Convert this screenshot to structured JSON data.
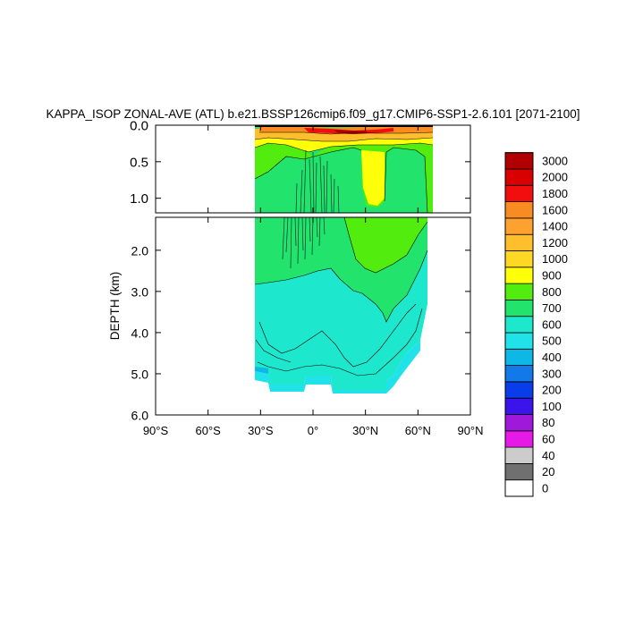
{
  "chart_data": {
    "type": "heatmap",
    "title": "KAPPA_ISOP ZONAL-AVE (ATL) b.e21.BSSP126cmip6.f09_g17.CMIP6-SSP1-2.6.101 [2071-2100]",
    "ylabel": "DEPTH (km)",
    "xlabel": "",
    "xlim": [
      -90,
      90
    ],
    "upper_panel": {
      "ylim": [
        0.0,
        1.2
      ],
      "yticks": [
        "0.0",
        "0.5",
        "1.0"
      ],
      "ytick_values": [
        0.0,
        0.5,
        1.0
      ]
    },
    "lower_panel": {
      "ylim": [
        1.2,
        6.0
      ],
      "yticks": [
        "2.0",
        "3.0",
        "4.0",
        "5.0",
        "6.0"
      ],
      "ytick_values": [
        2.0,
        3.0,
        4.0,
        5.0,
        6.0
      ]
    },
    "xticks": [
      {
        "value": -90,
        "label": "90°S"
      },
      {
        "value": -60,
        "label": "60°S"
      },
      {
        "value": -30,
        "label": "30°S"
      },
      {
        "value": 0,
        "label": "0°"
      },
      {
        "value": 30,
        "label": "30°N"
      },
      {
        "value": 60,
        "label": "60°N"
      },
      {
        "value": 90,
        "label": "90°N"
      }
    ],
    "colorbar": {
      "levels": [
        "0",
        "20",
        "40",
        "60",
        "80",
        "100",
        "200",
        "300",
        "400",
        "500",
        "600",
        "700",
        "800",
        "900",
        "1000",
        "1200",
        "1400",
        "1600",
        "1800",
        "2000",
        "3000"
      ],
      "colors": [
        "#ffffff",
        "#707070",
        "#cccccc",
        "#e619e6",
        "#9e19d9",
        "#3a14ea",
        "#0a3dea",
        "#1378e8",
        "#0db7e6",
        "#20e2e8",
        "#1de7cc",
        "#22e36c",
        "#52ec0e",
        "#ffff0a",
        "#ffd823",
        "#ffbe2c",
        "#ffa12e",
        "#f98c20",
        "#f20e0e",
        "#d90000",
        "#b00000"
      ]
    },
    "value_range": [
      0,
      3000
    ],
    "domain_lat": [
      -34,
      68
    ]
  }
}
